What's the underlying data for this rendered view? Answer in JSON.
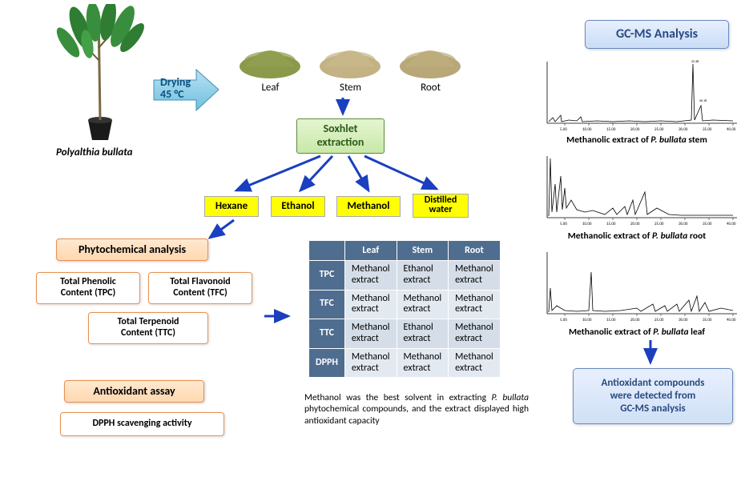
{
  "plant": {
    "species": "Polyalthia bullata",
    "drying_label_line1": "Drying",
    "drying_label_line2": "45 °C",
    "pot_color": "#1a1a1a",
    "stem_color": "#7a6a40",
    "leaf_color": "#2e7d32"
  },
  "powders": {
    "items": [
      {
        "label": "Leaf",
        "color": "#8a9a4a"
      },
      {
        "label": "Stem",
        "color": "#c2b284"
      },
      {
        "label": "Root",
        "color": "#b8a878"
      }
    ]
  },
  "soxhlet": {
    "line1": "Soxhlet",
    "line2": "extraction"
  },
  "solvents": {
    "s1": "Hexane",
    "s2": "Ethanol",
    "s3": "Methanol",
    "s4_line1": "Distilled",
    "s4_line2": "water"
  },
  "phyto": {
    "heading": "Phytochemical analysis",
    "tpc_line1": "Total Phenolic",
    "tpc_line2": "Content (TPC)",
    "tfc_line1": "Total Flavonoid",
    "tfc_line2": "Content (TFC)",
    "ttc_line1": "Total Terpenoid",
    "ttc_line2": "Content (TTC)"
  },
  "antiox": {
    "heading": "Antioxidant assay",
    "dpph": "DPPH scavenging activity"
  },
  "table": {
    "cols": [
      "Leaf",
      "Stem",
      "Root"
    ],
    "rows": [
      {
        "head": "TPC",
        "cells": [
          "Methanol extract",
          "Ethanol extract",
          "Methanol extract"
        ]
      },
      {
        "head": "TFC",
        "cells": [
          "Methanol extract",
          "Methanol extract",
          "Methanol extract"
        ]
      },
      {
        "head": "TTC",
        "cells": [
          "Methanol extract",
          "Ethanol extract",
          "Methanol extract"
        ]
      },
      {
        "head": "DPPH",
        "cells": [
          "Methanol extract",
          "Methanol extract",
          "Methanol extract"
        ]
      }
    ],
    "caption_before": "Methanol was the best solvent in extracting ",
    "caption_italic": "P. bullata",
    "caption_after": " phytochemical compounds, and the extract displayed high antioxidant capacity",
    "header_bg": "#4f6d8f",
    "cell_bg": "#e3e9f0",
    "cell_bg_alt": "#d4dde8"
  },
  "gcms": {
    "heading": "GC-MS Analysis",
    "label_prefix": "Methanolic extract of ",
    "label_italic": "P. bullata",
    "label1_suffix": " stem",
    "label2_suffix": " root",
    "label3_suffix": " leaf",
    "result_line1": "Antioxidant compounds",
    "result_line2": "were detected from",
    "result_line3": "GC-MS analysis",
    "chrom_axis_ticks": [
      "5.00",
      "10.00",
      "15.00",
      "20.00",
      "25.00",
      "30.00",
      "35.00",
      "40.00"
    ],
    "chrom_line_color": "#000000"
  },
  "arrows": {
    "color": "#1a3fbf",
    "stroke_width": 3
  }
}
